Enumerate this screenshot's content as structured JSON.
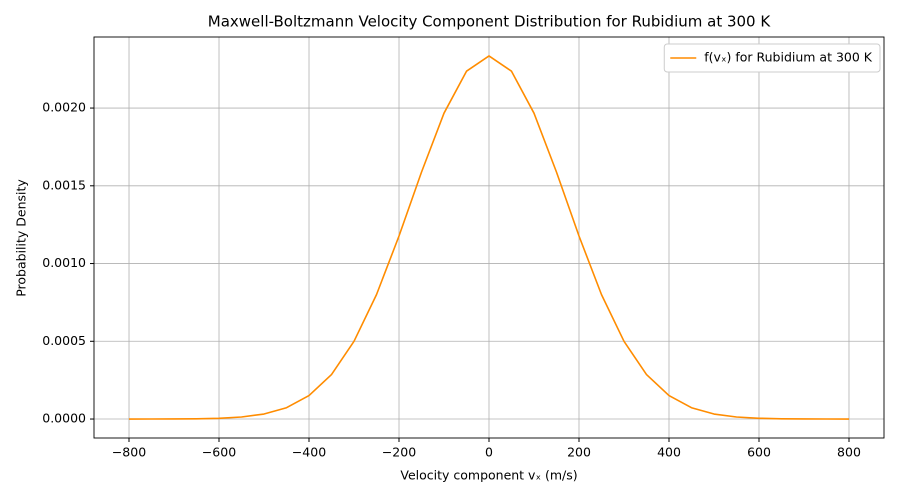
{
  "chart_data": {
    "type": "line",
    "title": "Maxwell-Boltzmann Velocity Component Distribution for Rubidium at 300 K",
    "x_label": "Velocity component vₓ (m/s)",
    "y_label": "Probability Density",
    "x": [
      -800,
      -750,
      -700,
      -650,
      -600,
      -550,
      -500,
      -450,
      -400,
      -350,
      -300,
      -250,
      -200,
      -150,
      -100,
      -50,
      0,
      50,
      100,
      150,
      200,
      250,
      300,
      350,
      400,
      450,
      500,
      550,
      600,
      650,
      700,
      750,
      800
    ],
    "series": [
      {
        "name": "f(vₓ) for Rubidium at 300 K",
        "color": "#ff8c00",
        "values": [
          4e-08,
          1.5e-07,
          5.3e-07,
          1.7e-06,
          4.9e-06,
          1.31e-05,
          3.22e-05,
          7.27e-05,
          0.000151,
          0.000286,
          0.0005,
          0.0008,
          0.001177,
          0.001588,
          0.001967,
          0.002237,
          0.002335,
          0.002237,
          0.001967,
          0.001588,
          0.001177,
          0.0008,
          0.0005,
          0.000286,
          0.000151,
          7.27e-05,
          3.22e-05,
          1.31e-05,
          4.9e-06,
          1.7e-06,
          5.3e-07,
          1.5e-07,
          4e-08
        ]
      }
    ],
    "xlim": [
      -877.8,
      877.8
    ],
    "ylim": [
      -0.000122,
      0.002457
    ],
    "xticks": [
      {
        "value": -800,
        "label": "−800"
      },
      {
        "value": -600,
        "label": "−600"
      },
      {
        "value": -400,
        "label": "−400"
      },
      {
        "value": -200,
        "label": "−200"
      },
      0,
      200,
      400,
      600,
      800
    ],
    "yticks": [
      {
        "value": 0,
        "label": "0.0000"
      },
      {
        "value": 0.0005,
        "label": "0.0005"
      },
      {
        "value": 0.001,
        "label": "0.0010"
      },
      {
        "value": 0.0015,
        "label": "0.0015"
      },
      {
        "value": 0.002,
        "label": "0.0020"
      }
    ],
    "grid": true,
    "legend": "upper right"
  }
}
